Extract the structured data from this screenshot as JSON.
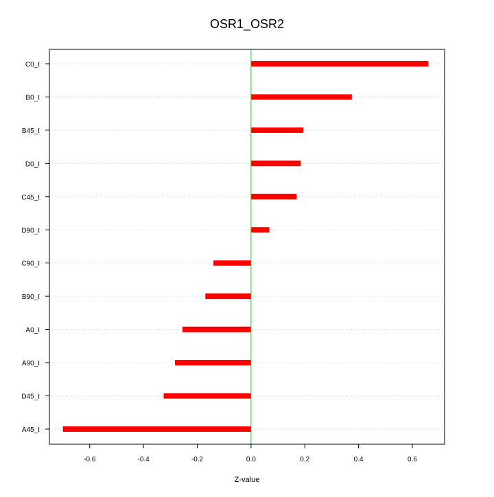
{
  "chart_data": {
    "type": "bar",
    "orientation": "horizontal",
    "title": "OSR1_OSR2",
    "xlabel": "Z-value",
    "ylabel": "",
    "categories": [
      "C0_I",
      "B0_I",
      "B45_I",
      "D0_I",
      "C45_I",
      "D90_I",
      "C90_I",
      "B90_I",
      "A0_I",
      "A90_I",
      "D45_I",
      "A45_I"
    ],
    "values": [
      0.66,
      0.375,
      0.195,
      0.185,
      0.17,
      0.068,
      -0.14,
      -0.17,
      -0.255,
      -0.283,
      -0.325,
      -0.7
    ],
    "xlim": [
      -0.75,
      0.72
    ],
    "xticks": [
      -0.6,
      -0.4,
      -0.2,
      0.0,
      0.2,
      0.4,
      0.6
    ],
    "xtick_labels": [
      "-0.6",
      "-0.4",
      "-0.2",
      "0.0",
      "0.2",
      "0.4",
      "0.6"
    ],
    "reference_line": 0.0,
    "grid": "horizontal dotted",
    "colors": {
      "bar": "#ff0000",
      "reference_line": "#00dd00",
      "grid": "#c8c8c8",
      "frame": "#000000"
    }
  }
}
